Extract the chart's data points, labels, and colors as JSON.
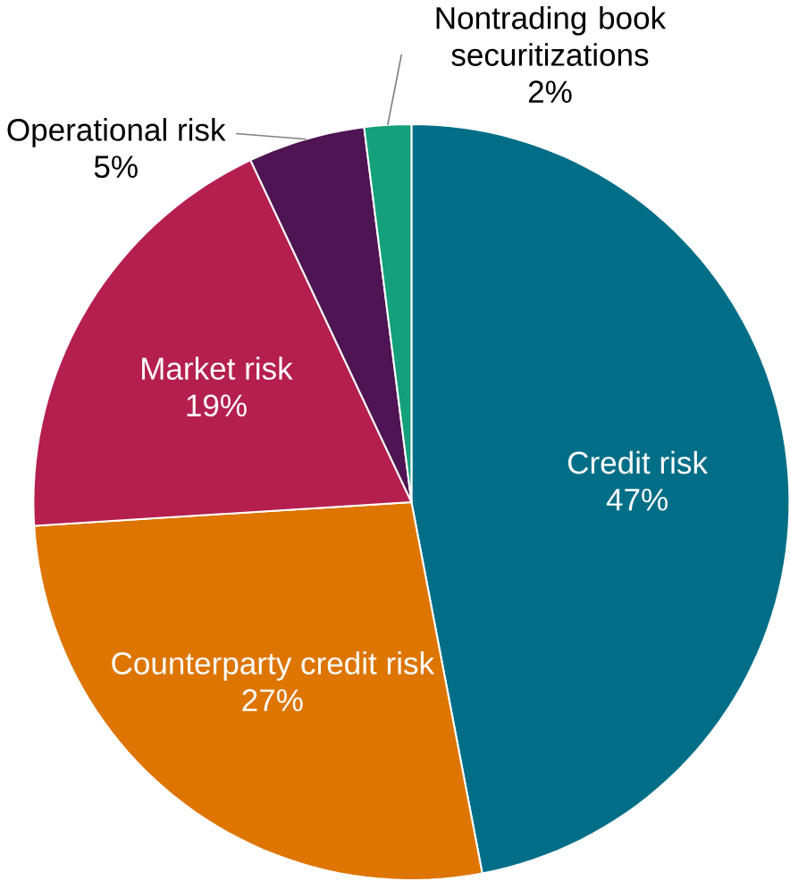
{
  "chart_data": {
    "type": "pie",
    "categories": [
      "Credit risk",
      "Counterparty credit risk",
      "Market risk",
      "Operational risk",
      "Nontrading book securitizations"
    ],
    "values": [
      47,
      27,
      19,
      5,
      2
    ],
    "value_labels": [
      "47%",
      "27%",
      "19%",
      "5%",
      "2%"
    ],
    "colors": [
      "#006e87",
      "#dd7500",
      "#b51f4f",
      "#4e1453",
      "#14a07a"
    ]
  }
}
